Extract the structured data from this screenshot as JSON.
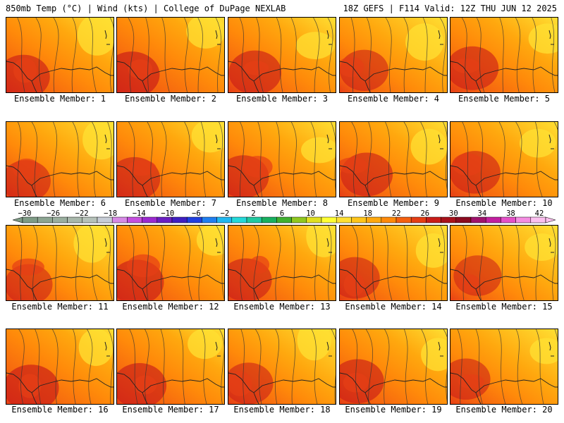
{
  "header": {
    "left": "850mb Temp (°C) | Wind (kts) | College of DuPage NEXLAB",
    "right": "18Z GEFS | F114 Valid: 12Z THU JUN 12 2025"
  },
  "panels": [
    {
      "label": "Ensemble Member: 1",
      "heat": 0.62
    },
    {
      "label": "Ensemble Member: 2",
      "heat": 0.72
    },
    {
      "label": "Ensemble Member: 3",
      "heat": 0.62
    },
    {
      "label": "Ensemble Member: 4",
      "heat": 0.48
    },
    {
      "label": "Ensemble Member: 5",
      "heat": 0.6
    },
    {
      "label": "Ensemble Member: 6",
      "heat": 0.5
    },
    {
      "label": "Ensemble Member: 7",
      "heat": 0.58
    },
    {
      "label": "Ensemble Member: 8",
      "heat": 0.55
    },
    {
      "label": "Ensemble Member: 9",
      "heat": 0.6
    },
    {
      "label": "Ensemble Member: 10",
      "heat": 0.55
    },
    {
      "label": "Ensemble Member: 11",
      "heat": 0.45
    },
    {
      "label": "Ensemble Member: 12",
      "heat": 0.66
    },
    {
      "label": "Ensemble Member: 13",
      "heat": 0.58
    },
    {
      "label": "Ensemble Member: 14",
      "heat": 0.5
    },
    {
      "label": "Ensemble Member: 15",
      "heat": 0.45
    },
    {
      "label": "Ensemble Member: 16",
      "heat": 0.72
    },
    {
      "label": "Ensemble Member: 17",
      "heat": 0.66
    },
    {
      "label": "Ensemble Member: 18",
      "heat": 0.5
    },
    {
      "label": "Ensemble Member: 19",
      "heat": 0.62
    },
    {
      "label": "Ensemble Member: 20",
      "heat": 0.48
    }
  ],
  "colorbar": {
    "labels": [
      "−30",
      "−26",
      "−22",
      "−18",
      "−14",
      "−10",
      "−6",
      "−2",
      "2",
      "6",
      "10",
      "14",
      "18",
      "22",
      "26",
      "30",
      "34",
      "38",
      "42"
    ],
    "colors": [
      "#7e9c86",
      "#8ca592",
      "#9aaf9f",
      "#a8b8ab",
      "#b6c2ba",
      "#c7cdd6",
      "#d78ae6",
      "#c54fe0",
      "#9b2ad0",
      "#6a1fc2",
      "#3f1fc1",
      "#1f3fe0",
      "#1f7ff0",
      "#20b8f0",
      "#25d9d9",
      "#20c9a0",
      "#18b060",
      "#40b030",
      "#90c820",
      "#e0e020",
      "#ffff33",
      "#ffe033",
      "#ffc51a",
      "#ffa80e",
      "#ff8a0a",
      "#f46010",
      "#e53e15",
      "#c91d18",
      "#a8121b",
      "#8c0b20",
      "#a0136c",
      "#c21fa0",
      "#e550c8",
      "#f58de2",
      "#fbc0ef"
    ]
  }
}
